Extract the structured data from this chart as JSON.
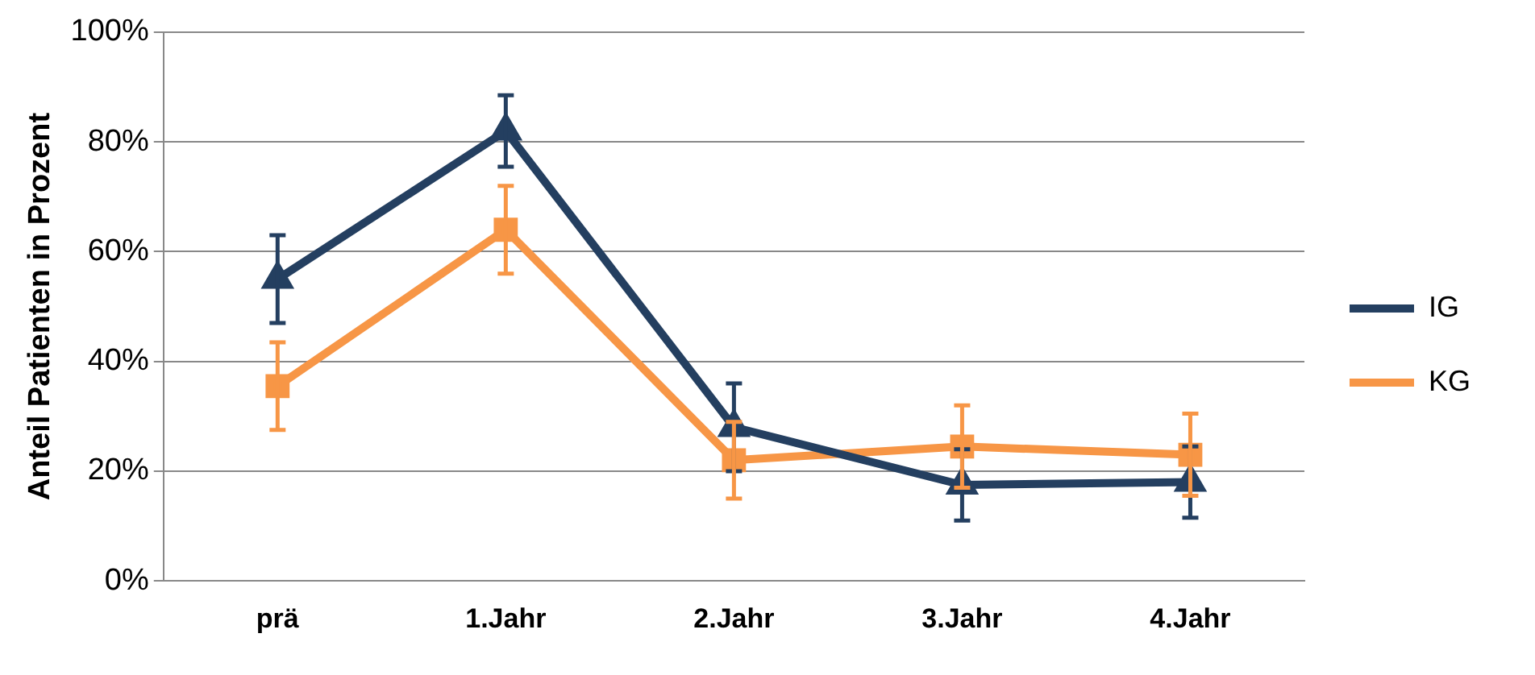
{
  "chart_data": {
    "type": "line",
    "ylabel": "Anteil Patienten in Prozent",
    "categories": [
      "prä",
      "1.Jahr",
      "2.Jahr",
      "3.Jahr",
      "4.Jahr"
    ],
    "series": [
      {
        "name": "IG",
        "color": "#243f60",
        "marker": "triangle",
        "values": [
          55,
          82,
          28,
          17.5,
          18
        ],
        "errors": [
          8,
          6.5,
          8,
          6.5,
          6.5
        ]
      },
      {
        "name": "KG",
        "color": "#f79646",
        "marker": "square",
        "values": [
          35.5,
          64,
          22,
          24.5,
          23
        ],
        "errors": [
          8,
          8,
          7,
          7.5,
          7.5
        ]
      }
    ],
    "ylim": [
      0,
      100
    ],
    "yticks": [
      {
        "value": 0,
        "label": "0%"
      },
      {
        "value": 20,
        "label": "20%"
      },
      {
        "value": 40,
        "label": "40%"
      },
      {
        "value": 60,
        "label": "60%"
      },
      {
        "value": 80,
        "label": "80%"
      },
      {
        "value": 100,
        "label": "100%"
      }
    ],
    "grid": "y",
    "legend": "right",
    "line_style": "solid"
  }
}
